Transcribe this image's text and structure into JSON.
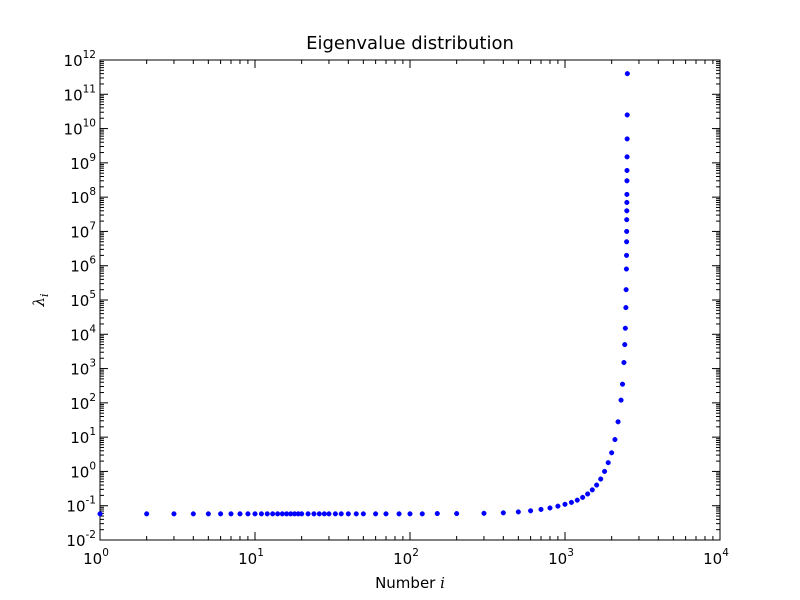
{
  "chart_data": {
    "type": "scatter",
    "title": "Eigenvalue distribution",
    "xlabel": {
      "prefix": "Number ",
      "symbol": "i"
    },
    "ylabel": {
      "symbol": "λ",
      "subscript": "i"
    },
    "xscale": "log",
    "yscale": "log",
    "xlim": [
      1,
      10000
    ],
    "ylim": [
      0.01,
      1000000000000
    ],
    "grid": false,
    "legend": "none",
    "marker_color": "#0000ff",
    "x_ticks": [
      {
        "base": "10",
        "exp": "0"
      },
      {
        "base": "10",
        "exp": "1"
      },
      {
        "base": "10",
        "exp": "2"
      },
      {
        "base": "10",
        "exp": "3"
      },
      {
        "base": "10",
        "exp": "4"
      }
    ],
    "y_ticks": [
      {
        "base": "10",
        "exp": "-2"
      },
      {
        "base": "10",
        "exp": "-1"
      },
      {
        "base": "10",
        "exp": "0"
      },
      {
        "base": "10",
        "exp": "1"
      },
      {
        "base": "10",
        "exp": "2"
      },
      {
        "base": "10",
        "exp": "3"
      },
      {
        "base": "10",
        "exp": "4"
      },
      {
        "base": "10",
        "exp": "5"
      },
      {
        "base": "10",
        "exp": "6"
      },
      {
        "base": "10",
        "exp": "7"
      },
      {
        "base": "10",
        "exp": "8"
      },
      {
        "base": "10",
        "exp": "9"
      },
      {
        "base": "10",
        "exp": "10"
      },
      {
        "base": "10",
        "exp": "11"
      },
      {
        "base": "10",
        "exp": "12"
      }
    ],
    "points": [
      [
        1,
        0.058
      ],
      [
        2,
        0.058
      ],
      [
        3,
        0.058
      ],
      [
        4,
        0.058
      ],
      [
        5,
        0.058
      ],
      [
        6,
        0.058
      ],
      [
        7,
        0.058
      ],
      [
        8,
        0.058
      ],
      [
        9,
        0.058
      ],
      [
        10,
        0.058
      ],
      [
        11,
        0.058
      ],
      [
        12,
        0.058
      ],
      [
        13,
        0.058
      ],
      [
        14,
        0.058
      ],
      [
        15,
        0.058
      ],
      [
        16,
        0.058
      ],
      [
        17,
        0.058
      ],
      [
        18,
        0.058
      ],
      [
        19,
        0.058
      ],
      [
        20,
        0.058
      ],
      [
        22,
        0.058
      ],
      [
        24,
        0.058
      ],
      [
        26,
        0.058
      ],
      [
        28,
        0.058
      ],
      [
        30,
        0.058
      ],
      [
        33,
        0.058
      ],
      [
        36,
        0.058
      ],
      [
        40,
        0.058
      ],
      [
        45,
        0.058
      ],
      [
        50,
        0.058
      ],
      [
        60,
        0.058
      ],
      [
        70,
        0.058
      ],
      [
        85,
        0.058
      ],
      [
        100,
        0.058
      ],
      [
        120,
        0.058
      ],
      [
        150,
        0.059
      ],
      [
        200,
        0.059
      ],
      [
        300,
        0.06
      ],
      [
        400,
        0.062
      ],
      [
        500,
        0.066
      ],
      [
        600,
        0.071
      ],
      [
        700,
        0.078
      ],
      [
        800,
        0.086
      ],
      [
        900,
        0.097
      ],
      [
        1000,
        0.11
      ],
      [
        1100,
        0.125
      ],
      [
        1200,
        0.145
      ],
      [
        1300,
        0.175
      ],
      [
        1400,
        0.22
      ],
      [
        1500,
        0.29
      ],
      [
        1600,
        0.4
      ],
      [
        1700,
        0.6
      ],
      [
        1800,
        1.0
      ],
      [
        1900,
        1.8
      ],
      [
        2000,
        3.5
      ],
      [
        2100,
        8.5
      ],
      [
        2200,
        28
      ],
      [
        2300,
        120
      ],
      [
        2350,
        350
      ],
      [
        2400,
        1500
      ],
      [
        2430,
        5000
      ],
      [
        2450,
        15000
      ],
      [
        2470,
        60000
      ],
      [
        2480,
        200000
      ],
      [
        2490,
        800000
      ],
      [
        2495,
        2000000
      ],
      [
        2498,
        5000000
      ],
      [
        2500,
        10000000
      ],
      [
        2502,
        22000000
      ],
      [
        2504,
        40000000
      ],
      [
        2506,
        70000000
      ],
      [
        2508,
        120000000
      ],
      [
        2510,
        300000000
      ],
      [
        2512,
        600000000
      ],
      [
        2515,
        1500000000
      ],
      [
        2518,
        5000000000
      ],
      [
        2520,
        25000000000
      ],
      [
        2525,
        400000000000
      ]
    ]
  }
}
